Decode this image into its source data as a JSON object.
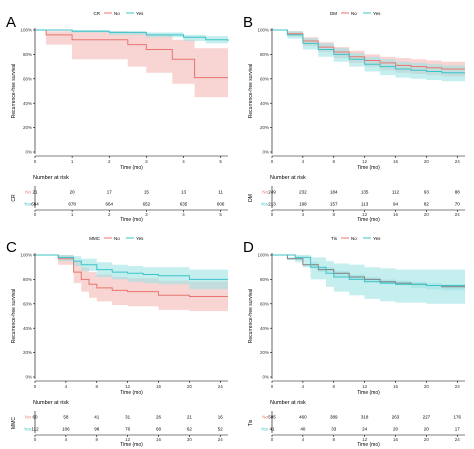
{
  "colors": {
    "no": "#e8766f",
    "yes": "#3cc3c7",
    "no_band": "#f3b8b5",
    "yes_band": "#9fe3e5",
    "combined_line": "#7f7f7f"
  },
  "chart_data": [
    {
      "type": "line",
      "panel": "A",
      "legend_title": "CR",
      "legend_items": [
        "No",
        "Yes"
      ],
      "legend_position": "top",
      "ylabel": "Recurrence-free survival",
      "xlabel": "Time (mo)",
      "x_ticks": [
        0,
        1,
        2,
        3,
        4,
        5
      ],
      "y_ticks": [
        "0%",
        "20%",
        "40%",
        "60%",
        "80%",
        "100%"
      ],
      "xlim": [
        0,
        5.2
      ],
      "ylim": [
        0,
        100
      ],
      "grid": false,
      "series": [
        {
          "name": "No",
          "color_key": "no",
          "step": [
            [
              0,
              100
            ],
            [
              0.3,
              96
            ],
            [
              1,
              96
            ],
            [
              1,
              92
            ],
            [
              2.5,
              88
            ],
            [
              3,
              84
            ],
            [
              3.7,
              76
            ],
            [
              4.3,
              61
            ],
            [
              5.2,
              61
            ]
          ],
          "band": [
            [
              0,
              100,
              100
            ],
            [
              0.3,
              99,
              88
            ],
            [
              1,
              99,
              76
            ],
            [
              2.5,
              98,
              70
            ],
            [
              3,
              96,
              65
            ],
            [
              3.7,
              92,
              56
            ],
            [
              4.3,
              85,
              45
            ],
            [
              5.2,
              85,
              43
            ]
          ]
        },
        {
          "name": "Yes",
          "color_key": "yes",
          "step": [
            [
              0,
              100
            ],
            [
              1,
              99
            ],
            [
              2,
              98
            ],
            [
              3,
              96
            ],
            [
              4,
              94
            ],
            [
              4.6,
              92
            ],
            [
              5.2,
              91
            ]
          ],
          "band": [
            [
              0,
              100,
              100
            ],
            [
              1,
              100,
              98
            ],
            [
              2,
              99,
              96
            ],
            [
              3,
              98,
              94
            ],
            [
              4,
              96,
              91
            ],
            [
              4.6,
              95,
              89
            ],
            [
              5.2,
              94,
              88
            ]
          ]
        }
      ],
      "risk_table": {
        "title": "Number at risk",
        "strata_label": "CR",
        "x_ticks": [
          0,
          1,
          2,
          3,
          4,
          5
        ],
        "xlabel": "Time (mo)",
        "rows": [
          {
            "label": "No",
            "values": [
              "21",
              "20",
              "17",
              "15",
              "13",
              "11"
            ]
          },
          {
            "label": "Yes",
            "values": [
              "684",
              "678",
              "664",
              "652",
              "635",
              "606"
            ]
          }
        ]
      }
    },
    {
      "type": "line",
      "panel": "B",
      "legend_title": "DM",
      "legend_items": [
        "No",
        "Yes"
      ],
      "legend_position": "top",
      "ylabel": "Recurrence-free survival",
      "xlabel": "Time (mo)",
      "x_ticks": [
        0,
        4,
        8,
        12,
        16,
        20,
        24
      ],
      "y_ticks": [
        "0%",
        "20%",
        "40%",
        "60%",
        "80%",
        "100%"
      ],
      "xlim": [
        0,
        25
      ],
      "ylim": [
        0,
        100
      ],
      "grid": false,
      "series": [
        {
          "name": "No",
          "color_key": "no",
          "step": [
            [
              0,
              100
            ],
            [
              2,
              97
            ],
            [
              4,
              91
            ],
            [
              6,
              86
            ],
            [
              8,
              82
            ],
            [
              10,
              78
            ],
            [
              12,
              75
            ],
            [
              14,
              73
            ],
            [
              16,
              71
            ],
            [
              18,
              70
            ],
            [
              20,
              69
            ],
            [
              22,
              68
            ],
            [
              25,
              68
            ]
          ],
          "band": [
            [
              0,
              100,
              100
            ],
            [
              2,
              99,
              95
            ],
            [
              4,
              94,
              87
            ],
            [
              6,
              90,
              82
            ],
            [
              8,
              86,
              77
            ],
            [
              10,
              83,
              73
            ],
            [
              12,
              80,
              70
            ],
            [
              14,
              78,
              67
            ],
            [
              16,
              77,
              65
            ],
            [
              18,
              76,
              64
            ],
            [
              20,
              75,
              63
            ],
            [
              22,
              74,
              62
            ],
            [
              25,
              74,
              61
            ]
          ]
        },
        {
          "name": "Yes",
          "color_key": "yes",
          "step": [
            [
              0,
              100
            ],
            [
              2,
              96
            ],
            [
              4,
              89
            ],
            [
              6,
              84
            ],
            [
              8,
              80
            ],
            [
              10,
              76
            ],
            [
              12,
              72
            ],
            [
              14,
              70
            ],
            [
              16,
              68
            ],
            [
              18,
              67
            ],
            [
              20,
              66
            ],
            [
              22,
              65
            ],
            [
              25,
              65
            ]
          ],
          "band": [
            [
              0,
              100,
              100
            ],
            [
              2,
              99,
              93
            ],
            [
              4,
              93,
              84
            ],
            [
              6,
              89,
              78
            ],
            [
              8,
              85,
              74
            ],
            [
              10,
              81,
              70
            ],
            [
              12,
              78,
              66
            ],
            [
              14,
              76,
              63
            ],
            [
              16,
              74,
              61
            ],
            [
              18,
              73,
              60
            ],
            [
              20,
              72,
              59
            ],
            [
              22,
              71,
              58
            ],
            [
              25,
              71,
              58
            ]
          ]
        }
      ],
      "risk_table": {
        "title": "Number at risk",
        "strata_label": "DM",
        "x_ticks": [
          0,
          4,
          8,
          12,
          16,
          20,
          24
        ],
        "xlabel": "Time (mo)",
        "rows": [
          {
            "label": "No",
            "values": [
              "249",
              "232",
              "184",
              "135",
              "112",
              "93",
              "88"
            ]
          },
          {
            "label": "Yes",
            "values": [
              "213",
              "198",
              "157",
              "113",
              "94",
              "82",
              "70"
            ]
          }
        ]
      }
    },
    {
      "type": "line",
      "panel": "C",
      "legend_title": "MMC",
      "legend_items": [
        "No",
        "Yes"
      ],
      "legend_position": "top",
      "ylabel": "Recurrence-free survival",
      "xlabel": "Time (mo)",
      "x_ticks": [
        0,
        4,
        8,
        12,
        16,
        20,
        24
      ],
      "y_ticks": [
        "0%",
        "20%",
        "40%",
        "60%",
        "80%",
        "100%"
      ],
      "xlim": [
        0,
        25
      ],
      "ylim": [
        0,
        100
      ],
      "grid": false,
      "series": [
        {
          "name": "No",
          "color_key": "no",
          "step": [
            [
              0,
              100
            ],
            [
              3,
              97
            ],
            [
              5,
              86
            ],
            [
              6,
              80
            ],
            [
              7,
              76
            ],
            [
              8,
              73
            ],
            [
              10,
              71
            ],
            [
              12,
              70
            ],
            [
              16,
              67
            ],
            [
              20,
              66
            ],
            [
              25,
              66
            ]
          ],
          "band": [
            [
              0,
              100,
              100
            ],
            [
              3,
              100,
              92
            ],
            [
              5,
              95,
              77
            ],
            [
              6,
              90,
              70
            ],
            [
              7,
              86,
              65
            ],
            [
              8,
              84,
              62
            ],
            [
              10,
              82,
              59
            ],
            [
              12,
              81,
              58
            ],
            [
              16,
              79,
              55
            ],
            [
              20,
              78,
              54
            ],
            [
              25,
              78,
              54
            ]
          ]
        },
        {
          "name": "Yes",
          "color_key": "yes",
          "step": [
            [
              0,
              100
            ],
            [
              3,
              98
            ],
            [
              5,
              95
            ],
            [
              6,
              92
            ],
            [
              8,
              88
            ],
            [
              10,
              86
            ],
            [
              12,
              85
            ],
            [
              14,
              84
            ],
            [
              16,
              83
            ],
            [
              20,
              80
            ],
            [
              25,
              80
            ]
          ],
          "band": [
            [
              0,
              100,
              100
            ],
            [
              3,
              100,
              95
            ],
            [
              5,
              99,
              91
            ],
            [
              6,
              97,
              87
            ],
            [
              8,
              94,
              82
            ],
            [
              10,
              92,
              80
            ],
            [
              12,
              91,
              78
            ],
            [
              14,
              90,
              77
            ],
            [
              16,
              90,
              76
            ],
            [
              20,
              88,
              72
            ],
            [
              25,
              88,
              72
            ]
          ]
        }
      ],
      "risk_table": {
        "title": "Number at risk",
        "strata_label": "MMC",
        "x_ticks": [
          0,
          4,
          8,
          12,
          16,
          20,
          24
        ],
        "xlabel": "Time (mo)",
        "rows": [
          {
            "label": "No",
            "values": [
              "60",
              "58",
              "41",
              "31",
              "26",
              "21",
              "16"
            ]
          },
          {
            "label": "Yes",
            "values": [
              "112",
              "106",
              "98",
              "76",
              "68",
              "62",
              "52"
            ]
          }
        ]
      }
    },
    {
      "type": "line",
      "panel": "D",
      "legend_title": "Tis",
      "legend_items": [
        "No",
        "Yes"
      ],
      "legend_position": "top",
      "ylabel": "Recurrence-free survival",
      "xlabel": "Time (mo)",
      "x_ticks": [
        0,
        4,
        8,
        12,
        16,
        20,
        24
      ],
      "y_ticks": [
        "0%",
        "20%",
        "40%",
        "60%",
        "80%",
        "100%"
      ],
      "xlim": [
        0,
        25
      ],
      "ylim": [
        0,
        100
      ],
      "grid": false,
      "series": [
        {
          "name": "No",
          "color_key": "combined_line",
          "step": [
            [
              0,
              100
            ],
            [
              2,
              97
            ],
            [
              4,
              92
            ],
            [
              6,
              88
            ],
            [
              8,
              85
            ],
            [
              10,
              82
            ],
            [
              12,
              80
            ],
            [
              14,
              78
            ],
            [
              16,
              77
            ],
            [
              18,
              76
            ],
            [
              20,
              75
            ],
            [
              22,
              74
            ],
            [
              25,
              74
            ]
          ],
          "band": [
            [
              0,
              100,
              100
            ],
            [
              2,
              98,
              96
            ],
            [
              4,
              94,
              90
            ],
            [
              6,
              90,
              86
            ],
            [
              8,
              87,
              83
            ],
            [
              10,
              84,
              80
            ],
            [
              12,
              82,
              78
            ],
            [
              14,
              80,
              76
            ],
            [
              16,
              79,
              75
            ],
            [
              18,
              78,
              73
            ],
            [
              20,
              77,
              72
            ],
            [
              22,
              76,
              71
            ],
            [
              25,
              76,
              71
            ]
          ]
        },
        {
          "name": "Yes",
          "color_key": "yes",
          "step": [
            [
              0,
              100
            ],
            [
              3,
              98
            ],
            [
              5,
              90
            ],
            [
              7,
              85
            ],
            [
              8,
              82
            ],
            [
              10,
              80
            ],
            [
              12,
              78
            ],
            [
              14,
              77
            ],
            [
              16,
              76
            ],
            [
              20,
              75
            ],
            [
              25,
              75
            ]
          ],
          "band": [
            [
              0,
              100,
              100
            ],
            [
              3,
              100,
              94
            ],
            [
              5,
              98,
              80
            ],
            [
              7,
              95,
              74
            ],
            [
              8,
              93,
              70
            ],
            [
              10,
              92,
              67
            ],
            [
              12,
              90,
              64
            ],
            [
              14,
              89,
              62
            ],
            [
              16,
              88,
              61
            ],
            [
              20,
              88,
              60
            ],
            [
              25,
              88,
              60
            ]
          ]
        }
      ],
      "risk_table": {
        "title": "Number at risk",
        "strata_label": "Tis",
        "x_ticks": [
          0,
          4,
          8,
          12,
          16,
          20,
          24
        ],
        "xlabel": "Time (mo)",
        "rows": [
          {
            "label": "No",
            "values": [
              "505",
              "460",
              "389",
              "318",
              "263",
              "227",
              "176"
            ]
          },
          {
            "label": "Yes",
            "values": [
              "41",
              "40",
              "33",
              "24",
              "20",
              "20",
              "17"
            ]
          }
        ]
      }
    }
  ]
}
